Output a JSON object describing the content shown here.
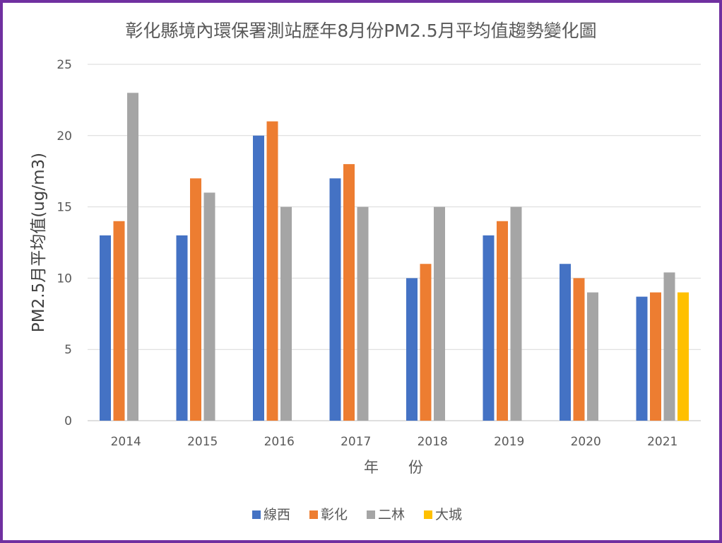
{
  "chart_data": {
    "type": "bar",
    "title": "彰化縣境內環保署測站歷年8月份PM2.5月平均值趨勢變化圖",
    "xlabel": "年 份",
    "ylabel": "PM2.5月平均值(ug/m3)",
    "ylim": [
      0,
      25
    ],
    "yticks": [
      0,
      5,
      10,
      15,
      20,
      25
    ],
    "grid": true,
    "legend_position": "bottom",
    "categories": [
      "2014",
      "2015",
      "2016",
      "2017",
      "2018",
      "2019",
      "2020",
      "2021"
    ],
    "series": [
      {
        "name": "線西",
        "color": "#4472c4",
        "values": [
          13,
          13,
          20,
          17,
          10,
          13,
          11,
          8.7
        ]
      },
      {
        "name": "彰化",
        "color": "#ed7d31",
        "values": [
          14,
          17,
          21,
          18,
          11,
          14,
          10,
          9
        ]
      },
      {
        "name": "二林",
        "color": "#a5a5a5",
        "values": [
          23,
          16,
          15,
          15,
          15,
          15,
          9,
          10.4
        ]
      },
      {
        "name": "大城",
        "color": "#ffc000",
        "values": [
          null,
          null,
          null,
          null,
          null,
          null,
          null,
          9
        ]
      }
    ]
  }
}
